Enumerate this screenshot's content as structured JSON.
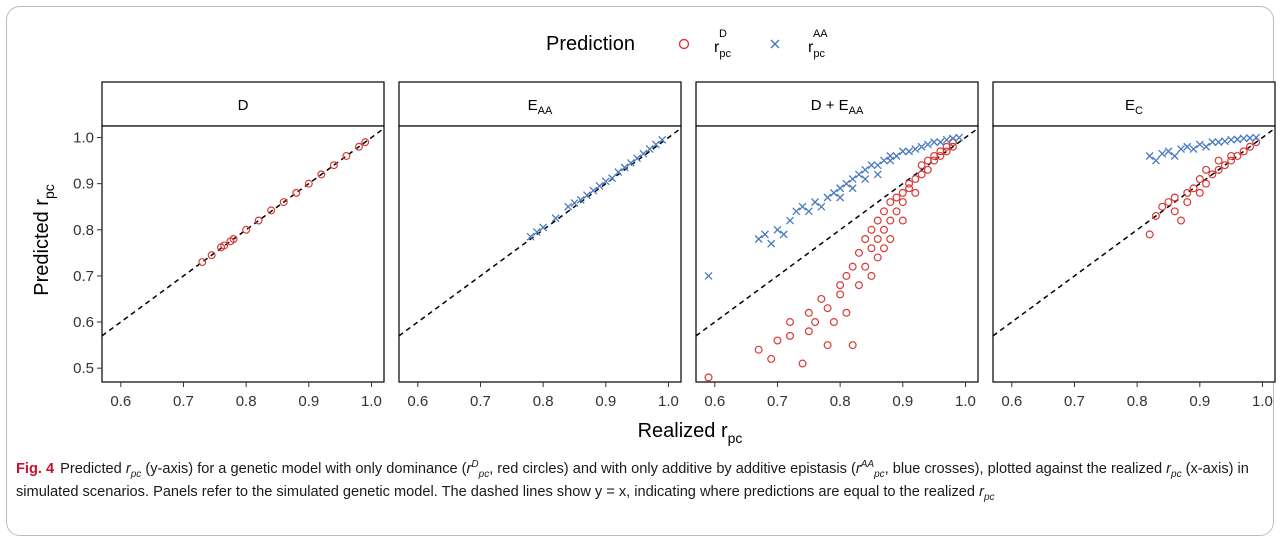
{
  "figure": {
    "legend": {
      "title": "Prediction",
      "entries": [
        {
          "main": "r",
          "sub": "pc",
          "sup": "D",
          "marker": "circle",
          "color": "#d93b37"
        },
        {
          "main": "r",
          "sub": "pc",
          "sup": "AA",
          "marker": "cross",
          "color": "#4a79bf"
        }
      ]
    },
    "y_axis_title": {
      "main": "Predicted r",
      "sub": "pc"
    },
    "x_axis_title": {
      "main": "Realized r",
      "sub": "pc"
    },
    "caption": {
      "label": "Fig. 4",
      "t1": "Predicted",
      "t2": "(y-axis) for a genetic model with only dominance (",
      "t3": ", red circles) and with only additive by additive epistasis (",
      "t4": ", blue crosses), plotted against the realized",
      "t5": "(x-axis) in simulated scenarios. Panels refer to the simulated genetic model. The dashed lines show y = x, indicating where predictions are equal to the realized",
      "rpc": "r",
      "pc": "pc",
      "supD": "D",
      "supAA": "AA"
    }
  },
  "chart_data": {
    "type": "scatter",
    "xlim": [
      0.57,
      1.02
    ],
    "ylim": [
      0.47,
      1.025
    ],
    "x_ticks": [
      0.6,
      0.7,
      0.8,
      0.9,
      1.0
    ],
    "x_tick_labels": [
      "0.6",
      "0.7",
      "0.8",
      "0.9",
      "1.0"
    ],
    "y_ticks": [
      0.5,
      0.6,
      0.7,
      0.8,
      0.9,
      1.0
    ],
    "y_tick_labels": [
      "0.5",
      "0.6",
      "0.7",
      "0.8",
      "0.9",
      "1.0"
    ],
    "reference_line": "y = x (dashed)",
    "panels": [
      {
        "title": {
          "main": "D",
          "sub": ""
        },
        "series": [
          {
            "name": "rpc^D",
            "marker": "circle",
            "color": "#d93b37",
            "points": [
              [
                0.73,
                0.73
              ],
              [
                0.745,
                0.745
              ],
              [
                0.76,
                0.762
              ],
              [
                0.765,
                0.766
              ],
              [
                0.775,
                0.775
              ],
              [
                0.78,
                0.78
              ],
              [
                0.8,
                0.8
              ],
              [
                0.82,
                0.82
              ],
              [
                0.84,
                0.842
              ],
              [
                0.86,
                0.86
              ],
              [
                0.88,
                0.88
              ],
              [
                0.9,
                0.9
              ],
              [
                0.92,
                0.92
              ],
              [
                0.94,
                0.94
              ],
              [
                0.96,
                0.96
              ],
              [
                0.98,
                0.98
              ],
              [
                0.99,
                0.99
              ]
            ]
          },
          {
            "name": "rpc^AA",
            "marker": "cross",
            "color": "#4a79bf",
            "points": []
          }
        ]
      },
      {
        "title": {
          "main": "E",
          "sub": "AA"
        },
        "series": [
          {
            "name": "rpc^D",
            "marker": "circle",
            "color": "#d93b37",
            "points": []
          },
          {
            "name": "rpc^AA",
            "marker": "cross",
            "color": "#4a79bf",
            "points": [
              [
                0.78,
                0.785
              ],
              [
                0.79,
                0.795
              ],
              [
                0.8,
                0.805
              ],
              [
                0.82,
                0.825
              ],
              [
                0.84,
                0.85
              ],
              [
                0.85,
                0.858
              ],
              [
                0.86,
                0.865
              ],
              [
                0.87,
                0.875
              ],
              [
                0.88,
                0.885
              ],
              [
                0.89,
                0.895
              ],
              [
                0.9,
                0.905
              ],
              [
                0.91,
                0.912
              ],
              [
                0.92,
                0.925
              ],
              [
                0.93,
                0.935
              ],
              [
                0.94,
                0.945
              ],
              [
                0.95,
                0.955
              ],
              [
                0.96,
                0.965
              ],
              [
                0.97,
                0.975
              ],
              [
                0.98,
                0.985
              ],
              [
                0.99,
                0.995
              ]
            ]
          }
        ]
      },
      {
        "title": {
          "main": "D + E",
          "sub": "AA"
        },
        "series": [
          {
            "name": "rpc^D",
            "marker": "circle",
            "color": "#d93b37",
            "points": [
              [
                0.59,
                0.48
              ],
              [
                0.67,
                0.54
              ],
              [
                0.69,
                0.52
              ],
              [
                0.7,
                0.56
              ],
              [
                0.72,
                0.57
              ],
              [
                0.72,
                0.6
              ],
              [
                0.74,
                0.51
              ],
              [
                0.75,
                0.58
              ],
              [
                0.75,
                0.62
              ],
              [
                0.76,
                0.6
              ],
              [
                0.77,
                0.65
              ],
              [
                0.78,
                0.55
              ],
              [
                0.78,
                0.63
              ],
              [
                0.79,
                0.6
              ],
              [
                0.8,
                0.66
              ],
              [
                0.8,
                0.68
              ],
              [
                0.81,
                0.7
              ],
              [
                0.81,
                0.62
              ],
              [
                0.82,
                0.55
              ],
              [
                0.82,
                0.72
              ],
              [
                0.83,
                0.75
              ],
              [
                0.83,
                0.68
              ],
              [
                0.84,
                0.72
              ],
              [
                0.84,
                0.78
              ],
              [
                0.85,
                0.7
              ],
              [
                0.85,
                0.76
              ],
              [
                0.85,
                0.8
              ],
              [
                0.86,
                0.74
              ],
              [
                0.86,
                0.78
              ],
              [
                0.86,
                0.82
              ],
              [
                0.87,
                0.8
              ],
              [
                0.87,
                0.84
              ],
              [
                0.87,
                0.76
              ],
              [
                0.88,
                0.82
              ],
              [
                0.88,
                0.86
              ],
              [
                0.88,
                0.78
              ],
              [
                0.89,
                0.84
              ],
              [
                0.89,
                0.87
              ],
              [
                0.9,
                0.86
              ],
              [
                0.9,
                0.88
              ],
              [
                0.9,
                0.82
              ],
              [
                0.91,
                0.89
              ],
              [
                0.91,
                0.9
              ],
              [
                0.92,
                0.91
              ],
              [
                0.92,
                0.88
              ],
              [
                0.93,
                0.92
              ],
              [
                0.93,
                0.94
              ],
              [
                0.94,
                0.93
              ],
              [
                0.94,
                0.95
              ],
              [
                0.95,
                0.95
              ],
              [
                0.95,
                0.96
              ],
              [
                0.96,
                0.96
              ],
              [
                0.96,
                0.97
              ],
              [
                0.97,
                0.97
              ],
              [
                0.97,
                0.98
              ],
              [
                0.98,
                0.98
              ],
              [
                0.98,
                0.99
              ]
            ]
          },
          {
            "name": "rpc^AA",
            "marker": "cross",
            "color": "#4a79bf",
            "points": [
              [
                0.59,
                0.7
              ],
              [
                0.67,
                0.78
              ],
              [
                0.68,
                0.79
              ],
              [
                0.69,
                0.77
              ],
              [
                0.7,
                0.8
              ],
              [
                0.71,
                0.79
              ],
              [
                0.72,
                0.82
              ],
              [
                0.73,
                0.84
              ],
              [
                0.74,
                0.85
              ],
              [
                0.75,
                0.84
              ],
              [
                0.76,
                0.86
              ],
              [
                0.77,
                0.85
              ],
              [
                0.78,
                0.87
              ],
              [
                0.79,
                0.88
              ],
              [
                0.8,
                0.89
              ],
              [
                0.8,
                0.87
              ],
              [
                0.81,
                0.9
              ],
              [
                0.82,
                0.91
              ],
              [
                0.82,
                0.89
              ],
              [
                0.83,
                0.92
              ],
              [
                0.84,
                0.93
              ],
              [
                0.84,
                0.91
              ],
              [
                0.85,
                0.94
              ],
              [
                0.86,
                0.94
              ],
              [
                0.86,
                0.92
              ],
              [
                0.87,
                0.95
              ],
              [
                0.88,
                0.95
              ],
              [
                0.88,
                0.96
              ],
              [
                0.89,
                0.96
              ],
              [
                0.9,
                0.97
              ],
              [
                0.91,
                0.97
              ],
              [
                0.92,
                0.975
              ],
              [
                0.93,
                0.98
              ],
              [
                0.94,
                0.985
              ],
              [
                0.95,
                0.99
              ],
              [
                0.96,
                0.99
              ],
              [
                0.97,
                0.995
              ],
              [
                0.98,
                0.998
              ],
              [
                0.99,
                1.0
              ]
            ]
          }
        ]
      },
      {
        "title": {
          "main": "E",
          "sub": "C"
        },
        "series": [
          {
            "name": "rpc^D",
            "marker": "circle",
            "color": "#d93b37",
            "points": [
              [
                0.82,
                0.79
              ],
              [
                0.83,
                0.83
              ],
              [
                0.84,
                0.85
              ],
              [
                0.85,
                0.86
              ],
              [
                0.86,
                0.87
              ],
              [
                0.86,
                0.84
              ],
              [
                0.87,
                0.82
              ],
              [
                0.88,
                0.88
              ],
              [
                0.88,
                0.86
              ],
              [
                0.89,
                0.89
              ],
              [
                0.9,
                0.88
              ],
              [
                0.9,
                0.91
              ],
              [
                0.91,
                0.9
              ],
              [
                0.91,
                0.93
              ],
              [
                0.92,
                0.92
              ],
              [
                0.93,
                0.93
              ],
              [
                0.93,
                0.95
              ],
              [
                0.94,
                0.94
              ],
              [
                0.95,
                0.95
              ],
              [
                0.95,
                0.96
              ],
              [
                0.96,
                0.96
              ],
              [
                0.97,
                0.97
              ],
              [
                0.98,
                0.98
              ],
              [
                0.99,
                0.99
              ]
            ]
          },
          {
            "name": "rpc^AA",
            "marker": "cross",
            "color": "#4a79bf",
            "points": [
              [
                0.82,
                0.96
              ],
              [
                0.83,
                0.95
              ],
              [
                0.84,
                0.965
              ],
              [
                0.85,
                0.97
              ],
              [
                0.86,
                0.96
              ],
              [
                0.87,
                0.975
              ],
              [
                0.88,
                0.98
              ],
              [
                0.89,
                0.975
              ],
              [
                0.9,
                0.985
              ],
              [
                0.91,
                0.98
              ],
              [
                0.92,
                0.99
              ],
              [
                0.93,
                0.99
              ],
              [
                0.94,
                0.992
              ],
              [
                0.95,
                0.995
              ],
              [
                0.96,
                0.996
              ],
              [
                0.97,
                0.998
              ],
              [
                0.98,
                0.999
              ],
              [
                0.99,
                1.0
              ]
            ]
          }
        ]
      }
    ]
  }
}
